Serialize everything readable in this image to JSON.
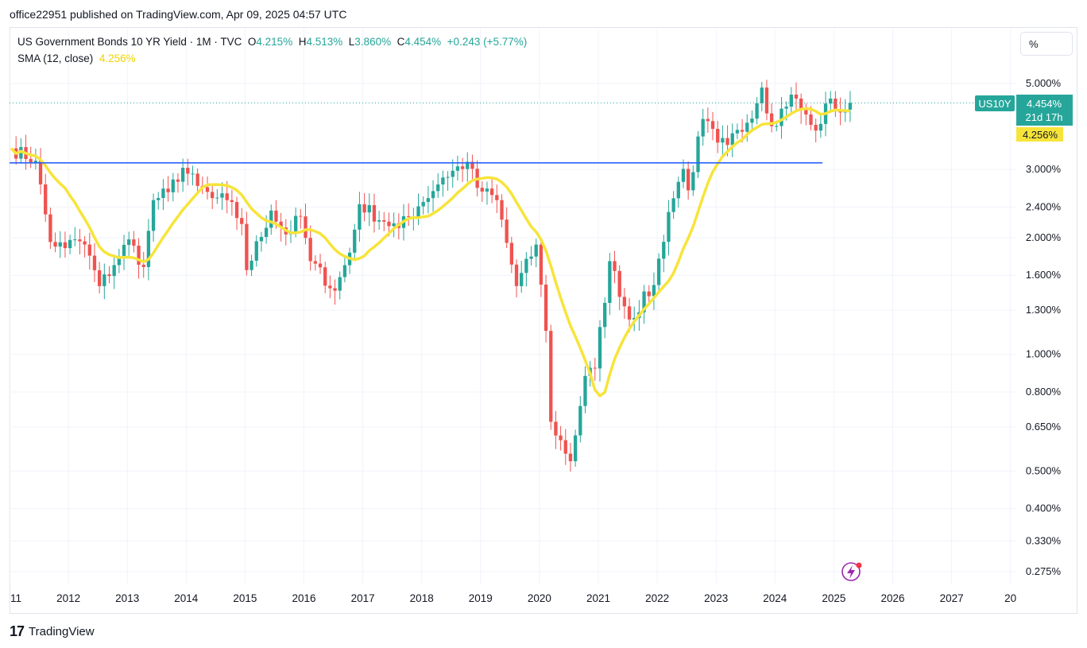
{
  "publisher": "office22951 published on TradingView.com, Apr 09, 2025 04:57 UTC",
  "legend": {
    "symbol_text": "US Government Bonds 10 YR Yield · 1M · TVC",
    "o_label": "O",
    "o_value": "4.215%",
    "h_label": "H",
    "h_value": "4.513%",
    "l_label": "L",
    "l_value": "3.860%",
    "c_label": "C",
    "c_value": "4.454%",
    "change": "+0.243 (+5.77%)",
    "sma_label": "SMA (12, close)",
    "sma_value": "4.256%"
  },
  "scale_button": "%",
  "badges": {
    "symbol": "US10Y",
    "price": "4.454%",
    "countdown": "21d 17h",
    "sma": "4.256%"
  },
  "footer": {
    "logo": "17",
    "brand": "TradingView"
  },
  "colors": {
    "up": "#26a69a",
    "down": "#ef5350",
    "sma": "#f7e43a",
    "hline": "#2962ff"
  },
  "icons": {
    "flash": "lightning-icon"
  },
  "chart_data": {
    "type": "candlestick",
    "y_scale": "log",
    "ylim": [
      0.26,
      6.2
    ],
    "y_ticks": [
      "5.000%",
      "3.000%",
      "2.400%",
      "2.000%",
      "1.600%",
      "1.300%",
      "1.000%",
      "0.800%",
      "0.650%",
      "0.500%",
      "0.400%",
      "0.330%",
      "0.275%"
    ],
    "x_ticks": [
      "11",
      "2012",
      "2013",
      "2014",
      "2015",
      "2016",
      "2017",
      "2018",
      "2019",
      "2020",
      "2021",
      "2022",
      "2023",
      "2024",
      "2025",
      "2026",
      "2027",
      "20"
    ],
    "horizontal_line": 3.12,
    "anchors": [
      [
        "2011-01",
        3.4
      ],
      [
        "2011-06",
        3.16
      ],
      [
        "2011-09",
        1.95
      ],
      [
        "2011-12",
        1.88
      ],
      [
        "2012-02",
        1.98
      ],
      [
        "2012-04",
        1.92
      ],
      [
        "2012-07",
        1.5
      ],
      [
        "2012-10",
        1.7
      ],
      [
        "2013-01",
        1.98
      ],
      [
        "2013-04",
        1.68
      ],
      [
        "2013-06",
        2.5
      ],
      [
        "2013-09",
        2.62
      ],
      [
        "2013-12",
        3.03
      ],
      [
        "2014-03",
        2.72
      ],
      [
        "2014-06",
        2.53
      ],
      [
        "2014-09",
        2.5
      ],
      [
        "2014-12",
        2.17
      ],
      [
        "2015-01",
        1.65
      ],
      [
        "2015-06",
        2.35
      ],
      [
        "2015-09",
        2.04
      ],
      [
        "2015-12",
        2.27
      ],
      [
        "2016-02",
        1.74
      ],
      [
        "2016-07",
        1.46
      ],
      [
        "2016-10",
        1.83
      ],
      [
        "2016-12",
        2.44
      ],
      [
        "2017-05",
        2.2
      ],
      [
        "2017-08",
        2.12
      ],
      [
        "2017-12",
        2.41
      ],
      [
        "2018-05",
        2.86
      ],
      [
        "2018-10",
        3.14
      ],
      [
        "2018-12",
        2.69
      ],
      [
        "2019-04",
        2.5
      ],
      [
        "2019-08",
        1.5
      ],
      [
        "2019-12",
        1.92
      ],
      [
        "2020-02",
        1.15
      ],
      [
        "2020-03",
        0.67
      ],
      [
        "2020-07",
        0.53
      ],
      [
        "2020-10",
        0.88
      ],
      [
        "2020-12",
        0.92
      ],
      [
        "2021-03",
        1.74
      ],
      [
        "2021-07",
        1.23
      ],
      [
        "2021-12",
        1.51
      ],
      [
        "2022-03",
        2.33
      ],
      [
        "2022-06",
        3.01
      ],
      [
        "2022-07",
        2.65
      ],
      [
        "2022-10",
        4.05
      ],
      [
        "2023-01",
        3.52
      ],
      [
        "2023-03",
        3.47
      ],
      [
        "2023-07",
        3.96
      ],
      [
        "2023-10",
        4.88
      ],
      [
        "2023-12",
        3.88
      ],
      [
        "2024-04",
        4.68
      ],
      [
        "2024-08",
        3.91
      ],
      [
        "2024-09",
        3.78
      ],
      [
        "2024-12",
        4.57
      ],
      [
        "2025-02",
        4.21
      ],
      [
        "2025-04",
        4.454
      ]
    ],
    "series": [
      {
        "name": "US Government Bonds 10 YR Yield",
        "kind": "candles",
        "interval": "1M"
      },
      {
        "name": "SMA (12, close)",
        "kind": "line"
      }
    ]
  }
}
